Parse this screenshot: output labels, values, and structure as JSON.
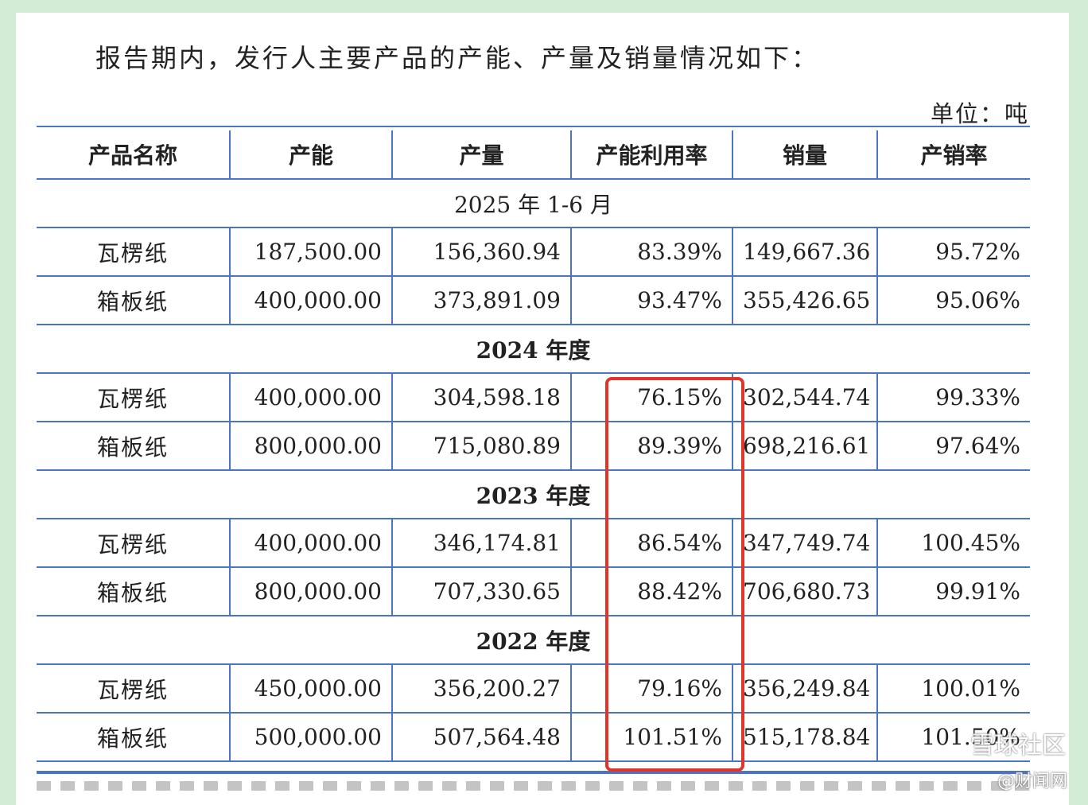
{
  "intro": "报告期内，发行人主要产品的产能、产量及销量情况如下：",
  "unit": "单位：吨",
  "headers": [
    "产品名称",
    "产能",
    "产量",
    "产能利用率",
    "销量",
    "产销率"
  ],
  "sections": [
    {
      "period": "2025 年 1-6 月",
      "rows": [
        {
          "name": "瓦楞纸",
          "capacity": "187,500.00",
          "output": "156,360.94",
          "utilization": "83.39%",
          "sales": "149,667.36",
          "ratio": "95.72%"
        },
        {
          "name": "箱板纸",
          "capacity": "400,000.00",
          "output": "373,891.09",
          "utilization": "93.47%",
          "sales": "355,426.65",
          "ratio": "95.06%"
        }
      ]
    },
    {
      "period": "2024 年度",
      "rows": [
        {
          "name": "瓦楞纸",
          "capacity": "400,000.00",
          "output": "304,598.18",
          "utilization": "76.15%",
          "sales": "302,544.74",
          "ratio": "99.33%"
        },
        {
          "name": "箱板纸",
          "capacity": "800,000.00",
          "output": "715,080.89",
          "utilization": "89.39%",
          "sales": "698,216.61",
          "ratio": "97.64%"
        }
      ]
    },
    {
      "period": "2023 年度",
      "rows": [
        {
          "name": "瓦楞纸",
          "capacity": "400,000.00",
          "output": "346,174.81",
          "utilization": "86.54%",
          "sales": "347,749.74",
          "ratio": "100.45%"
        },
        {
          "name": "箱板纸",
          "capacity": "800,000.00",
          "output": "707,330.65",
          "utilization": "88.42%",
          "sales": "706,680.73",
          "ratio": "99.91%"
        }
      ]
    },
    {
      "period": "2022 年度",
      "rows": [
        {
          "name": "瓦楞纸",
          "capacity": "450,000.00",
          "output": "356,200.27",
          "utilization": "79.16%",
          "sales": "356,249.84",
          "ratio": "100.01%"
        },
        {
          "name": "箱板纸",
          "capacity": "500,000.00",
          "output": "507,564.48",
          "utilization": "101.51%",
          "sales": "515,178.84",
          "ratio": "101.50%"
        }
      ]
    }
  ],
  "watermarks": {
    "primary": "雪球社区",
    "secondary": "@财闻网"
  },
  "colors": {
    "rule": "#4b74c4",
    "highlight": "#e1342b",
    "frame": "#d3ecd6"
  }
}
